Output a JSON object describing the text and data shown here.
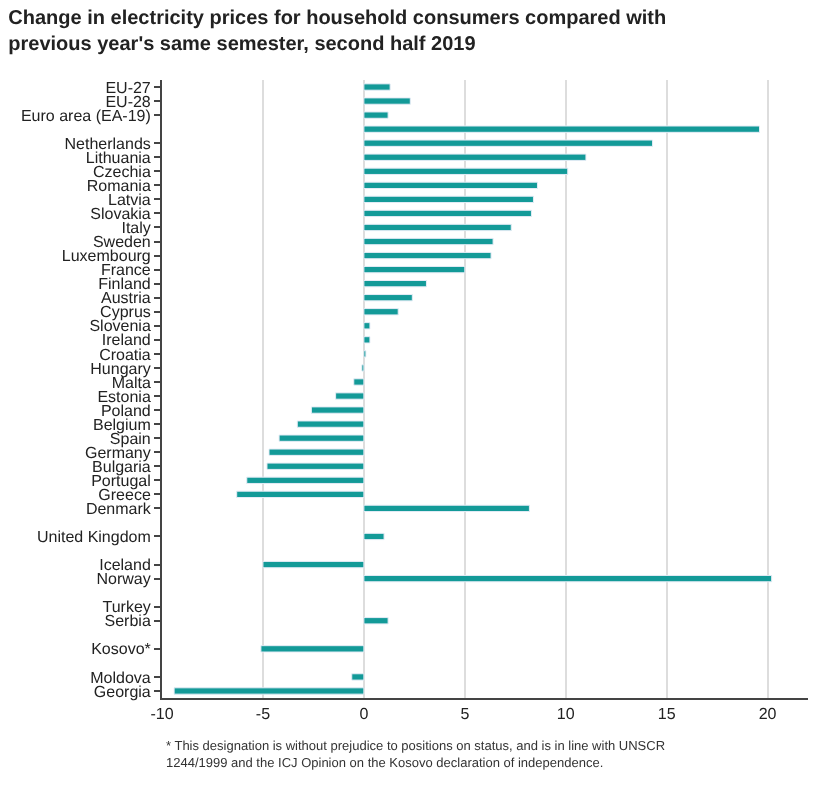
{
  "chart_data": {
    "type": "bar",
    "orientation": "horizontal",
    "title": "Change in electricity prices for household consumers compared with previous year's same semester, second half 2019",
    "categories": [
      "EU-27",
      "EU-28",
      "Euro area (EA-19)",
      null,
      "Netherlands",
      "Lithuania",
      "Czechia",
      "Romania",
      "Latvia",
      "Slovakia",
      "Italy",
      "Sweden",
      "Luxembourg",
      "France",
      "Finland",
      "Austria",
      "Cyprus",
      "Slovenia",
      "Ireland",
      "Croatia",
      "Hungary",
      "Malta",
      "Estonia",
      "Poland",
      "Belgium",
      "Spain",
      "Germany",
      "Bulgaria",
      "Portugal",
      "Greece",
      "Denmark",
      null,
      "United Kingdom",
      null,
      "Iceland",
      "Norway",
      null,
      "Turkey",
      "Serbia",
      null,
      "Kosovo*",
      null,
      "Moldova",
      "Georgia"
    ],
    "values": [
      1.3,
      2.3,
      1.2,
      19.6,
      14.3,
      11.0,
      10.1,
      8.6,
      8.4,
      8.3,
      7.3,
      6.4,
      6.3,
      5.0,
      3.1,
      2.4,
      1.7,
      0.3,
      0.3,
      0.1,
      -0.1,
      -0.5,
      -1.4,
      -2.6,
      -3.3,
      -4.2,
      -4.7,
      -4.8,
      -5.8,
      -6.3,
      8.2,
      null,
      1.0,
      null,
      -5.0,
      20.2,
      null,
      null,
      1.2,
      null,
      -5.1,
      null,
      -0.6,
      -9.4
    ],
    "color": "#139a98",
    "xlim": [
      -10,
      22
    ],
    "xticks": [
      -10,
      -5,
      0,
      5,
      10,
      15,
      20
    ],
    "grid": "x",
    "annotations": [
      "* This designation is without prejudice to positions on status, and is in line with UNSCR 1244/1999 and the ICJ Opinion on the Kosovo declaration of independence."
    ]
  }
}
